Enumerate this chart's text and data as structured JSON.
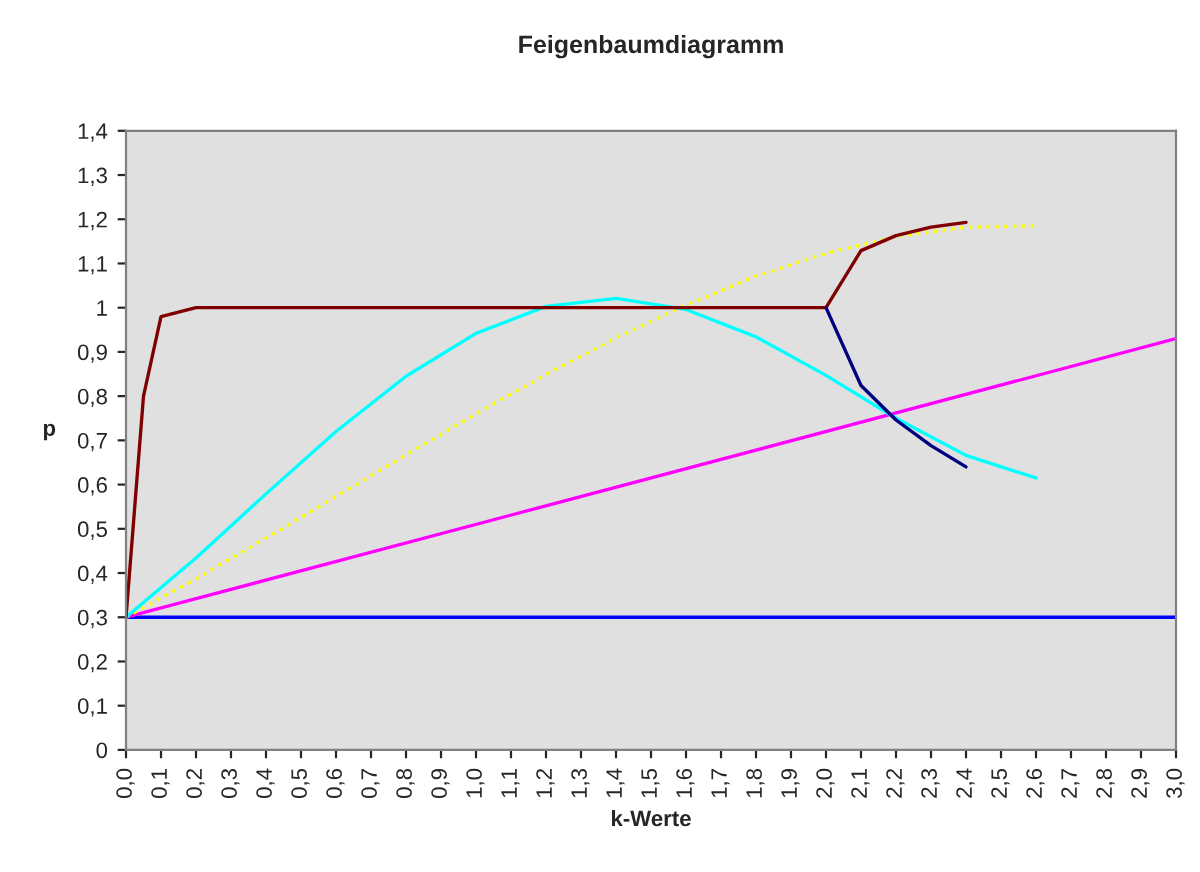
{
  "chart_data": {
    "type": "line",
    "title": "Feigenbaumdiagramm",
    "xlabel": "k-Werte",
    "ylabel": "p",
    "xlim": [
      0,
      3
    ],
    "ylim": [
      0,
      1.4
    ],
    "xticks": [
      {
        "value": 0,
        "label": "0,0"
      },
      {
        "value": 0.1,
        "label": "0,1"
      },
      {
        "value": 0.2,
        "label": "0,2"
      },
      {
        "value": 0.3,
        "label": "0,3"
      },
      {
        "value": 0.4,
        "label": "0,4"
      },
      {
        "value": 0.5,
        "label": "0,5"
      },
      {
        "value": 0.6,
        "label": "0,6"
      },
      {
        "value": 0.7,
        "label": "0,7"
      },
      {
        "value": 0.8,
        "label": "0,8"
      },
      {
        "value": 0.9,
        "label": "0,9"
      },
      {
        "value": 1.0,
        "label": "1,0"
      },
      {
        "value": 1.1,
        "label": "1,1"
      },
      {
        "value": 1.2,
        "label": "1,2"
      },
      {
        "value": 1.3,
        "label": "1,3"
      },
      {
        "value": 1.4,
        "label": "1,4"
      },
      {
        "value": 1.5,
        "label": "1,5"
      },
      {
        "value": 1.6,
        "label": "1,6"
      },
      {
        "value": 1.7,
        "label": "1,7"
      },
      {
        "value": 1.8,
        "label": "1,8"
      },
      {
        "value": 1.9,
        "label": "1,9"
      },
      {
        "value": 2.0,
        "label": "2,0"
      },
      {
        "value": 2.1,
        "label": "2,1"
      },
      {
        "value": 2.2,
        "label": "2,2"
      },
      {
        "value": 2.3,
        "label": "2,3"
      },
      {
        "value": 2.4,
        "label": "2,4"
      },
      {
        "value": 2.5,
        "label": "2,5"
      },
      {
        "value": 2.6,
        "label": "2,6"
      },
      {
        "value": 2.7,
        "label": "2,7"
      },
      {
        "value": 2.8,
        "label": "2,8"
      },
      {
        "value": 2.9,
        "label": "2,9"
      },
      {
        "value": 3.0,
        "label": "3,0"
      }
    ],
    "yticks": [
      0,
      {
        "value": 0.1,
        "label": "0,1"
      },
      {
        "value": 0.2,
        "label": "0,2"
      },
      {
        "value": 0.3,
        "label": "0,3"
      },
      {
        "value": 0.4,
        "label": "0,4"
      },
      {
        "value": 0.5,
        "label": "0,5"
      },
      {
        "value": 0.6,
        "label": "0,6"
      },
      {
        "value": 0.7,
        "label": "0,7"
      },
      {
        "value": 0.8,
        "label": "0,8"
      },
      {
        "value": 0.9,
        "label": "0,9"
      },
      1,
      {
        "value": 1.1,
        "label": "1,1"
      },
      {
        "value": 1.2,
        "label": "1,2"
      },
      {
        "value": 1.3,
        "label": "1,3"
      },
      {
        "value": 1.4,
        "label": "1,4"
      }
    ],
    "grid": false,
    "legend": false,
    "marker": "none",
    "series": [
      {
        "color": "#0000ff",
        "x": [
          0,
          3
        ],
        "values": [
          0.3,
          0.3
        ]
      },
      {
        "color": "#ff00ff",
        "x": [
          0,
          3
        ],
        "values": [
          0.3,
          0.93
        ]
      },
      {
        "color": "#ffff00",
        "line_style": "dotted",
        "x": [
          0,
          0.2,
          0.4,
          0.6,
          0.8,
          1.0,
          1.2,
          1.4,
          1.6,
          1.8,
          2.0,
          2.2,
          2.4,
          2.6
        ],
        "values": [
          0.3,
          0.387,
          0.479,
          0.573,
          0.667,
          0.76,
          0.849,
          0.932,
          1.006,
          1.071,
          1.123,
          1.161,
          1.182,
          1.185
        ]
      },
      {
        "color": "#00ffff",
        "x": [
          0,
          0.2,
          0.4,
          0.6,
          0.8,
          1.0,
          1.2,
          1.4,
          1.6,
          1.8,
          2.0,
          2.2,
          2.4,
          2.6
        ],
        "values": [
          0.3,
          0.434,
          0.579,
          0.72,
          0.845,
          0.942,
          1.003,
          1.021,
          0.996,
          0.934,
          0.847,
          0.75,
          0.666,
          0.615
        ]
      },
      {
        "color": "#800000",
        "x": [
          0,
          0.05,
          0.1,
          0.2,
          0.6,
          1.0,
          1.4,
          1.8,
          2.0,
          2.1,
          2.2,
          2.3,
          2.4
        ],
        "values": [
          0.3,
          0.8,
          0.98,
          1.0,
          1.0,
          1.0,
          1.0,
          1.0,
          1.0,
          1.129,
          1.163,
          1.182,
          1.193
        ]
      },
      {
        "color": "#000080",
        "x": [
          2.0,
          2.1,
          2.2,
          2.3,
          2.4
        ],
        "values": [
          1.0,
          0.824,
          0.746,
          0.688,
          0.64
        ]
      }
    ]
  }
}
